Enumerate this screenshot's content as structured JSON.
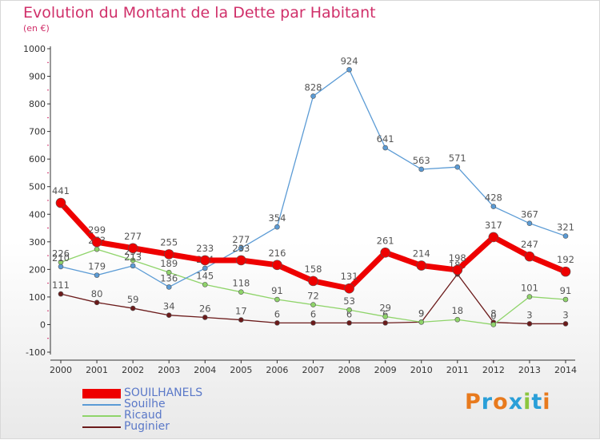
{
  "chart_data": {
    "type": "line",
    "title": "Evolution du Montant de la Dette par Habitant",
    "subtitle": "(en €)",
    "x": [
      "2000",
      "2001",
      "2002",
      "2003",
      "2004",
      "2005",
      "2006",
      "2007",
      "2008",
      "2009",
      "2010",
      "2011",
      "2012",
      "2013",
      "2014"
    ],
    "ylim": [
      -100,
      1000
    ],
    "yticks": [
      -100,
      0,
      100,
      200,
      300,
      400,
      500,
      600,
      700,
      800,
      900,
      1000
    ],
    "grid": false,
    "legend_position": "bottom-left",
    "series": [
      {
        "name": "Puginier",
        "color": "#6b1a1a",
        "values": [
          111,
          80,
          59,
          34,
          26,
          17,
          6,
          6,
          6,
          6,
          9,
          183,
          8,
          3,
          3
        ]
      },
      {
        "name": "Ricaud",
        "color": "#8fd46a",
        "values": [
          226,
          273,
          233,
          189,
          145,
          118,
          91,
          72,
          53,
          29,
          9,
          18,
          0,
          101,
          91
        ]
      },
      {
        "name": "Souilhe",
        "color": "#5b9bd5",
        "values": [
          210,
          179,
          213,
          136,
          204,
          277,
          354,
          828,
          924,
          641,
          563,
          571,
          428,
          367,
          321
        ]
      },
      {
        "name": "SOUILHANELS",
        "color": "#ee0000",
        "values": [
          441,
          299,
          277,
          255,
          233,
          233,
          216,
          158,
          131,
          261,
          214,
          198,
          317,
          247,
          192
        ]
      }
    ],
    "legend": [
      "SOUILHANELS",
      "Souilhe",
      "Ricaud",
      "Puginier"
    ]
  },
  "logo": {
    "text": "Proxiti",
    "colors": [
      "#e87a1d",
      "#2a9fd8",
      "#e87a1d",
      "#2a9fd8",
      "#8cc63f",
      "#2a9fd8",
      "#e87a1d"
    ]
  }
}
